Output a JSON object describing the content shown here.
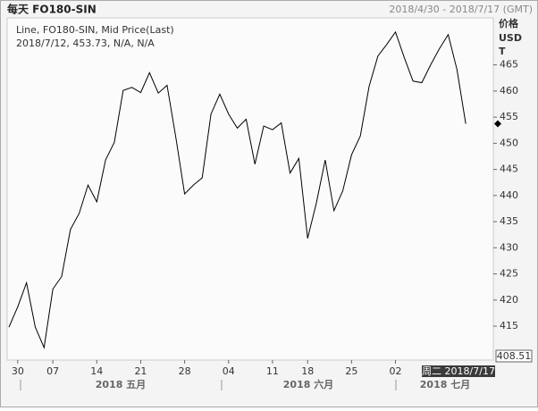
{
  "chart_data": {
    "type": "line",
    "title": "每天 FO180-SIN",
    "date_range": "2018/4/30 - 2018/7/17 (GMT)",
    "legend_line": "Line, FO180-SIN, Mid Price(Last)",
    "info_line": "2018/7/12, 453.73, N/A, N/A",
    "y_axis_label": [
      "价格",
      "USD",
      "T"
    ],
    "bottom_value_label": "408.51",
    "cursor_label": "周二 2018/7/17",
    "months": [
      "2018 五月",
      "2018 六月",
      "2018 七月"
    ],
    "categories": [
      null,
      "30",
      null,
      null,
      null,
      "07",
      null,
      null,
      null,
      null,
      "14",
      null,
      null,
      null,
      null,
      "21",
      null,
      null,
      null,
      null,
      "28",
      null,
      null,
      null,
      null,
      "04",
      null,
      null,
      null,
      null,
      "11",
      null,
      null,
      null,
      "18",
      null,
      null,
      null,
      null,
      "25",
      null,
      null,
      null,
      null,
      "02",
      null,
      null,
      null,
      null,
      null,
      null,
      null,
      null
    ],
    "series": [
      {
        "name": "FO180-SIN",
        "color": "#000000",
        "values": [
          414.8,
          418.7,
          423.3,
          414.8,
          410.9,
          422.1,
          424.5,
          433.5,
          436.6,
          442.0,
          438.8,
          446.8,
          450.2,
          460.1,
          460.7,
          459.7,
          463.5,
          459.6,
          461.1,
          451.1,
          440.3,
          442.0,
          443.4,
          455.6,
          459.4,
          455.6,
          452.9,
          454.6,
          446.0,
          453.3,
          452.6,
          453.9,
          444.3,
          447.1,
          431.8,
          438.6,
          446.8,
          437.1,
          440.9,
          447.8,
          451.4,
          460.9,
          466.7,
          468.9,
          471.3,
          466.4,
          461.9,
          461.6,
          465.0,
          468.1,
          470.8,
          464.1,
          453.73
        ]
      }
    ],
    "ylim": [
      408.51,
      474
    ],
    "yticks": [
      415,
      420,
      425,
      430,
      435,
      440,
      445,
      450,
      455,
      460,
      465
    ]
  }
}
